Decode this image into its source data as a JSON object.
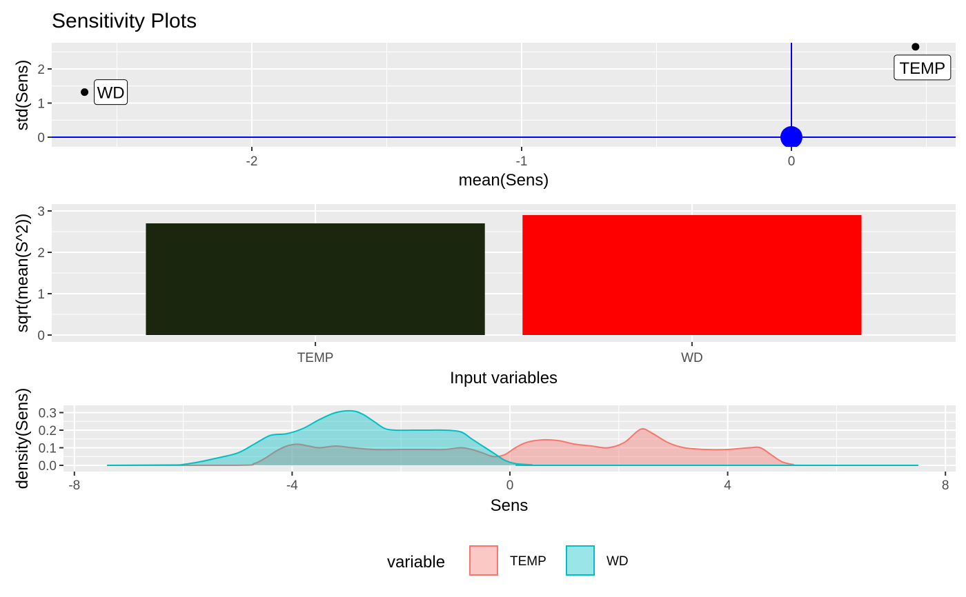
{
  "figure": {
    "title": "Sensitivity Plots"
  },
  "legend": {
    "title": "variable",
    "items": [
      {
        "label": "TEMP",
        "fill": "#F8766D"
      },
      {
        "label": "WD",
        "fill": "#00BFC4"
      }
    ]
  },
  "chart_data": [
    {
      "type": "scatter",
      "xlabel": "mean(Sens)",
      "ylabel": "std(Sens)",
      "xlim": [
        -2.75,
        0.6
      ],
      "ylim": [
        0,
        2.75
      ],
      "xticks": [
        -2,
        -1,
        0
      ],
      "yticks": [
        0,
        1,
        2
      ],
      "points": [
        {
          "label": "WD",
          "x": -2.62,
          "y": 1.32
        },
        {
          "label": "TEMP",
          "x": 0.46,
          "y": 2.65
        }
      ],
      "reference_lines": {
        "x": 0,
        "y": 0,
        "color": "#0000FF"
      },
      "grid": true
    },
    {
      "type": "bar",
      "xlabel": "Input variables",
      "ylabel": "sqrt(mean(S^2))",
      "categories": [
        "TEMP",
        "WD"
      ],
      "values": [
        2.7,
        2.9
      ],
      "colors": [
        "#1B260F",
        "#FF0000"
      ],
      "ylim": [
        0,
        3
      ],
      "yticks": [
        0,
        1,
        2,
        3
      ],
      "grid": true
    },
    {
      "type": "area",
      "xlabel": "Sens",
      "ylabel": "density(Sens)",
      "xlim": [
        -8,
        8
      ],
      "ylim": [
        0,
        0.32
      ],
      "xticks": [
        -8,
        -4,
        0,
        4,
        8
      ],
      "yticks": [
        0.0,
        0.1,
        0.2,
        0.3
      ],
      "ytick_labels": [
        "0.0",
        "0.1",
        "0.2",
        "0.3"
      ],
      "series": [
        {
          "name": "TEMP",
          "color": "#F8766D",
          "x": [
            -7.4,
            -5.0,
            -4.7,
            -4.5,
            -4.3,
            -4.1,
            -3.9,
            -3.7,
            -3.5,
            -3.2,
            -2.9,
            -2.5,
            -2.0,
            -1.5,
            -1.2,
            -0.9,
            -0.7,
            -0.5,
            -0.3,
            -0.1,
            0.1,
            0.3,
            0.6,
            0.9,
            1.2,
            1.5,
            1.8,
            2.1,
            2.4,
            2.6,
            2.9,
            3.2,
            3.6,
            4.0,
            4.4,
            4.6,
            4.8,
            5.0,
            5.2,
            5.4,
            7.5
          ],
          "y": [
            0.0,
            0.0,
            0.01,
            0.04,
            0.08,
            0.11,
            0.12,
            0.11,
            0.1,
            0.11,
            0.1,
            0.09,
            0.09,
            0.09,
            0.09,
            0.1,
            0.09,
            0.07,
            0.05,
            0.06,
            0.1,
            0.13,
            0.145,
            0.14,
            0.12,
            0.11,
            0.1,
            0.13,
            0.205,
            0.185,
            0.13,
            0.1,
            0.09,
            0.09,
            0.1,
            0.1,
            0.06,
            0.02,
            0.005,
            0.0,
            0.0
          ]
        },
        {
          "name": "WD",
          "color": "#00BFC4",
          "x": [
            -7.4,
            -6.2,
            -6.0,
            -5.7,
            -5.4,
            -5.0,
            -4.7,
            -4.4,
            -4.1,
            -3.8,
            -3.5,
            -3.2,
            -2.9,
            -2.7,
            -2.5,
            -2.3,
            -2.1,
            -1.8,
            -1.5,
            -1.2,
            -0.9,
            -0.7,
            -0.5,
            -0.3,
            -0.1,
            0.1,
            0.4,
            0.7,
            7.5
          ],
          "y": [
            0.0,
            0.002,
            0.005,
            0.02,
            0.04,
            0.07,
            0.12,
            0.17,
            0.18,
            0.21,
            0.26,
            0.3,
            0.31,
            0.29,
            0.25,
            0.21,
            0.2,
            0.2,
            0.2,
            0.2,
            0.19,
            0.15,
            0.11,
            0.07,
            0.03,
            0.01,
            0.003,
            0.0,
            0.0
          ]
        }
      ],
      "grid": true
    }
  ]
}
